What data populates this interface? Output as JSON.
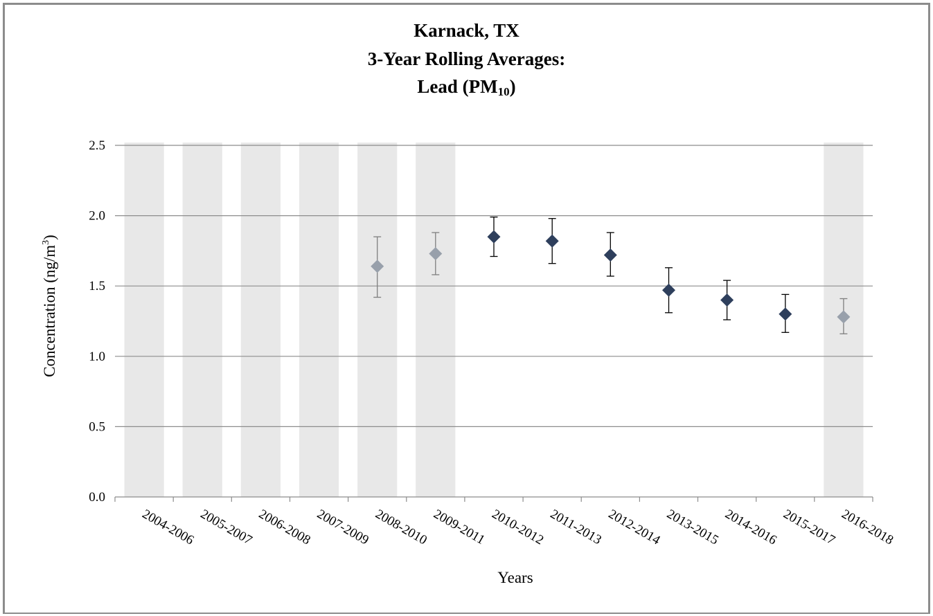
{
  "chart_data": {
    "type": "scatter",
    "title_lines": [
      "Karnack, TX",
      "3-Year Rolling Averages:"
    ],
    "title_line3": {
      "text": "Lead (PM",
      "sub": "10",
      "close": ")"
    },
    "xlabel": "Years",
    "ylabel": {
      "text": "Concentration (ng/m",
      "sup": "3",
      "close": ")"
    },
    "ylim": [
      0,
      2.5
    ],
    "yticks": [
      "0.0",
      "0.5",
      "1.0",
      "1.5",
      "2.0",
      "2.5"
    ],
    "grid": true,
    "categories": [
      "2004-2006",
      "2005-2007",
      "2006-2008",
      "2007-2009",
      "2008-2010",
      "2009-2011",
      "2010-2012",
      "2011-2013",
      "2012-2014",
      "2013-2015",
      "2014-2016",
      "2015-2017",
      "2016-2018"
    ],
    "shaded_categories": [
      "2004-2006",
      "2005-2007",
      "2006-2008",
      "2007-2009",
      "2008-2010",
      "2009-2011",
      "2016-2018"
    ],
    "points": [
      {
        "category": "2008-2010",
        "value": 1.64,
        "lower": 1.42,
        "upper": 1.85,
        "style": "light"
      },
      {
        "category": "2009-2011",
        "value": 1.73,
        "lower": 1.58,
        "upper": 1.88,
        "style": "light"
      },
      {
        "category": "2010-2012",
        "value": 1.85,
        "lower": 1.71,
        "upper": 1.99,
        "style": "dark"
      },
      {
        "category": "2011-2013",
        "value": 1.82,
        "lower": 1.66,
        "upper": 1.98,
        "style": "dark"
      },
      {
        "category": "2012-2014",
        "value": 1.72,
        "lower": 1.57,
        "upper": 1.88,
        "style": "dark"
      },
      {
        "category": "2013-2015",
        "value": 1.47,
        "lower": 1.31,
        "upper": 1.63,
        "style": "dark"
      },
      {
        "category": "2014-2016",
        "value": 1.4,
        "lower": 1.26,
        "upper": 1.54,
        "style": "dark"
      },
      {
        "category": "2015-2017",
        "value": 1.3,
        "lower": 1.17,
        "upper": 1.44,
        "style": "dark"
      },
      {
        "category": "2016-2018",
        "value": 1.28,
        "lower": 1.16,
        "upper": 1.41,
        "style": "light"
      }
    ],
    "colors": {
      "dark_marker": "#2e3f5c",
      "light_marker": "#98a0ab",
      "shade": "#e8e8e8",
      "grid": "#8c8c8c",
      "dark_error": "#000000",
      "light_error": "#7f7f7f"
    }
  }
}
